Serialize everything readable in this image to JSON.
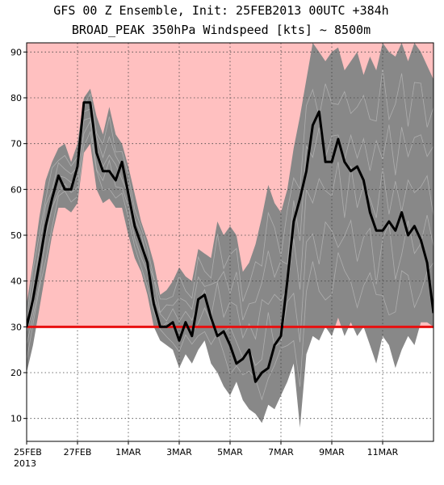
{
  "chart_data": {
    "type": "line",
    "title": "GFS 00 Z Ensemble, Init: 25FEB2013   00UTC +384h",
    "subtitle": "BROAD_PEAK 350hPa Windspeed [kts] ~ 8500m",
    "xlabel": "",
    "ylabel": "",
    "x_tick_labels": [
      "25FEB",
      "27FEB",
      "1MAR",
      "3MAR",
      "5MAR",
      "7MAR",
      "9MAR",
      "11MAR"
    ],
    "x_year_label": "2013",
    "x_tick_days": [
      0,
      2,
      4,
      6,
      8,
      10,
      12,
      14
    ],
    "xlim": [
      0,
      16
    ],
    "ylim": [
      5,
      92
    ],
    "y_ticks": [
      10,
      20,
      30,
      40,
      50,
      60,
      70,
      80,
      90
    ],
    "grid": true,
    "threshold": 30,
    "threshold_color": "#e81010",
    "above_threshold_fill": "#ffc0c0",
    "spread_color": "#888888",
    "member_line_color": "#b8b8b8",
    "mean_line_color": "#000000",
    "series": [
      {
        "values": [
          [
            0.0,
            30
          ],
          [
            0.25,
            36
          ],
          [
            0.5,
            44
          ],
          [
            0.75,
            52
          ],
          [
            1.0,
            58
          ],
          [
            1.25,
            63
          ],
          [
            1.5,
            60
          ],
          [
            1.75,
            60
          ],
          [
            2.0,
            65
          ],
          [
            2.25,
            79
          ],
          [
            2.5,
            79
          ],
          [
            2.75,
            68
          ],
          [
            3.0,
            64
          ],
          [
            3.25,
            64
          ],
          [
            3.5,
            62
          ],
          [
            3.75,
            66
          ],
          [
            4.0,
            59
          ],
          [
            4.25,
            52
          ],
          [
            4.5,
            48
          ],
          [
            4.75,
            44
          ],
          [
            5.0,
            35
          ],
          [
            5.25,
            30
          ],
          [
            5.5,
            30
          ],
          [
            5.75,
            31
          ],
          [
            6.0,
            27
          ],
          [
            6.25,
            31
          ],
          [
            6.5,
            28
          ],
          [
            6.75,
            36
          ],
          [
            7.0,
            37
          ],
          [
            7.25,
            32
          ],
          [
            7.5,
            28
          ],
          [
            7.75,
            29
          ],
          [
            8.0,
            26
          ],
          [
            8.25,
            22
          ],
          [
            8.5,
            23
          ],
          [
            8.75,
            25
          ],
          [
            9.0,
            18
          ],
          [
            9.25,
            20
          ],
          [
            9.5,
            21
          ],
          [
            9.75,
            26
          ],
          [
            10.0,
            28
          ],
          [
            10.25,
            40
          ],
          [
            10.5,
            53
          ],
          [
            10.75,
            58
          ],
          [
            11.0,
            64
          ],
          [
            11.25,
            74
          ],
          [
            11.5,
            77
          ],
          [
            11.75,
            66
          ],
          [
            12.0,
            66
          ],
          [
            12.25,
            71
          ],
          [
            12.5,
            66
          ],
          [
            12.75,
            64
          ],
          [
            13.0,
            65
          ],
          [
            13.25,
            62
          ],
          [
            13.5,
            55
          ],
          [
            13.75,
            51
          ],
          [
            14.0,
            51
          ],
          [
            14.25,
            53
          ],
          [
            14.5,
            51
          ],
          [
            14.75,
            55
          ],
          [
            15.0,
            50
          ],
          [
            15.25,
            52
          ],
          [
            15.5,
            49
          ],
          [
            15.75,
            44
          ],
          [
            16.0,
            33
          ]
        ]
      }
    ],
    "spread_band": {
      "upper": [
        [
          0.0,
          35
        ],
        [
          0.25,
          44
        ],
        [
          0.5,
          54
        ],
        [
          0.75,
          62
        ],
        [
          1.0,
          66
        ],
        [
          1.25,
          69
        ],
        [
          1.5,
          70
        ],
        [
          1.75,
          66
        ],
        [
          2.0,
          70
        ],
        [
          2.25,
          80
        ],
        [
          2.5,
          82
        ],
        [
          2.75,
          76
        ],
        [
          3.0,
          72
        ],
        [
          3.25,
          78
        ],
        [
          3.5,
          72
        ],
        [
          3.75,
          70
        ],
        [
          4.0,
          65
        ],
        [
          4.25,
          59
        ],
        [
          4.5,
          53
        ],
        [
          4.75,
          49
        ],
        [
          5.0,
          44
        ],
        [
          5.25,
          37
        ],
        [
          5.5,
          38
        ],
        [
          5.75,
          40
        ],
        [
          6.0,
          43
        ],
        [
          6.25,
          41
        ],
        [
          6.5,
          40
        ],
        [
          6.75,
          47
        ],
        [
          7.0,
          46
        ],
        [
          7.25,
          45
        ],
        [
          7.5,
          53
        ],
        [
          7.75,
          50
        ],
        [
          8.0,
          52
        ],
        [
          8.25,
          50
        ],
        [
          8.5,
          42
        ],
        [
          8.75,
          44
        ],
        [
          9.0,
          48
        ],
        [
          9.25,
          54
        ],
        [
          9.5,
          61
        ],
        [
          9.75,
          57
        ],
        [
          10.0,
          55
        ],
        [
          10.25,
          60
        ],
        [
          10.5,
          69
        ],
        [
          10.75,
          76
        ],
        [
          11.0,
          84
        ],
        [
          11.25,
          92
        ],
        [
          11.5,
          90
        ],
        [
          11.75,
          88
        ],
        [
          12.0,
          90
        ],
        [
          12.25,
          91
        ],
        [
          12.5,
          86
        ],
        [
          12.75,
          88
        ],
        [
          13.0,
          90
        ],
        [
          13.25,
          85
        ],
        [
          13.5,
          89
        ],
        [
          13.75,
          86
        ],
        [
          14.0,
          92
        ],
        [
          14.25,
          90
        ],
        [
          14.5,
          89
        ],
        [
          14.75,
          92
        ],
        [
          15.0,
          88
        ],
        [
          15.25,
          92
        ],
        [
          15.5,
          90
        ],
        [
          15.75,
          87
        ],
        [
          16.0,
          84
        ]
      ],
      "lower": [
        [
          0.0,
          20
        ],
        [
          0.25,
          26
        ],
        [
          0.5,
          34
        ],
        [
          0.75,
          42
        ],
        [
          1.0,
          50
        ],
        [
          1.25,
          56
        ],
        [
          1.5,
          56
        ],
        [
          1.75,
          55
        ],
        [
          2.0,
          57
        ],
        [
          2.25,
          68
        ],
        [
          2.5,
          70
        ],
        [
          2.75,
          60
        ],
        [
          3.0,
          57
        ],
        [
          3.25,
          58
        ],
        [
          3.5,
          56
        ],
        [
          3.75,
          56
        ],
        [
          4.0,
          50
        ],
        [
          4.25,
          45
        ],
        [
          4.5,
          42
        ],
        [
          4.75,
          37
        ],
        [
          5.0,
          30
        ],
        [
          5.25,
          27
        ],
        [
          5.5,
          26
        ],
        [
          5.75,
          25
        ],
        [
          6.0,
          21
        ],
        [
          6.25,
          24
        ],
        [
          6.5,
          22
        ],
        [
          6.75,
          25
        ],
        [
          7.0,
          27
        ],
        [
          7.25,
          22
        ],
        [
          7.5,
          20
        ],
        [
          7.75,
          17
        ],
        [
          8.0,
          15
        ],
        [
          8.25,
          18
        ],
        [
          8.5,
          14
        ],
        [
          8.75,
          12
        ],
        [
          9.0,
          11
        ],
        [
          9.25,
          9
        ],
        [
          9.5,
          13
        ],
        [
          9.75,
          12
        ],
        [
          10.0,
          15
        ],
        [
          10.25,
          18
        ],
        [
          10.5,
          22
        ],
        [
          10.75,
          8
        ],
        [
          11.0,
          24
        ],
        [
          11.25,
          28
        ],
        [
          11.5,
          27
        ],
        [
          11.75,
          30
        ],
        [
          12.0,
          28
        ],
        [
          12.25,
          32
        ],
        [
          12.5,
          28
        ],
        [
          12.75,
          31
        ],
        [
          13.0,
          28
        ],
        [
          13.25,
          30
        ],
        [
          13.5,
          26
        ],
        [
          13.75,
          22
        ],
        [
          14.0,
          28
        ],
        [
          14.25,
          26
        ],
        [
          14.5,
          21
        ],
        [
          14.75,
          25
        ],
        [
          15.0,
          28
        ],
        [
          15.25,
          26
        ],
        [
          15.5,
          31
        ],
        [
          15.75,
          31
        ],
        [
          16.0,
          30
        ]
      ]
    }
  }
}
